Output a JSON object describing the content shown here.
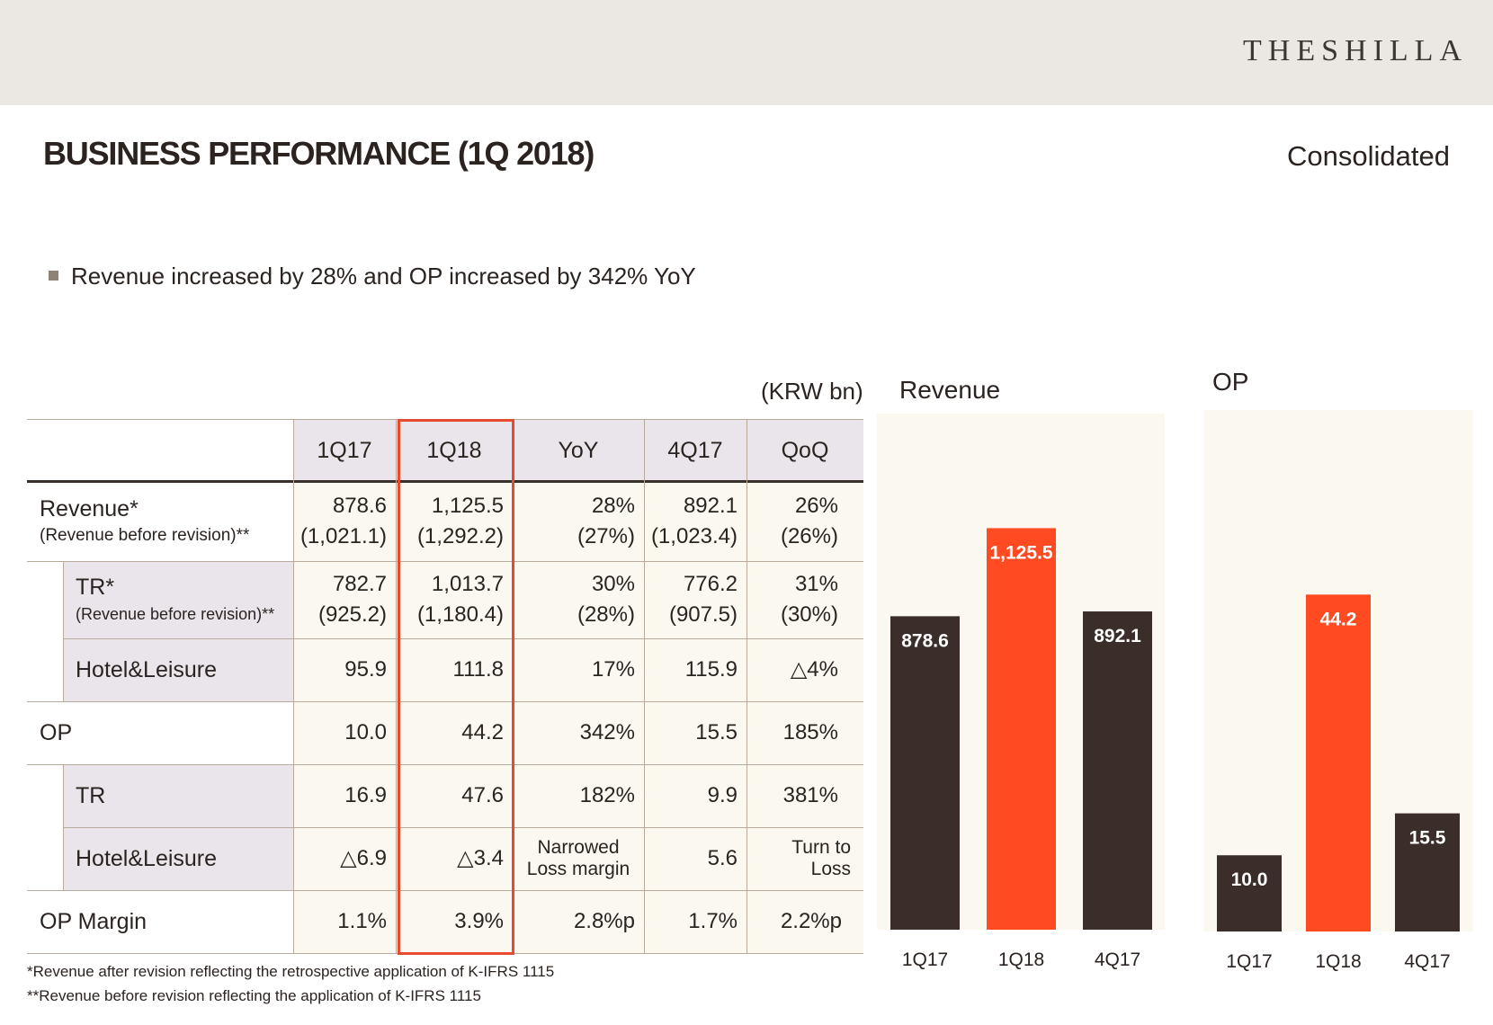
{
  "header": {
    "brand": "THESHILLA"
  },
  "page": {
    "title": "BUSINESS PERFORMANCE (1Q 2018)",
    "scope": "Consolidated",
    "headline": "Revenue increased by 28% and OP increased by 342% YoY",
    "unit": "(KRW bn)"
  },
  "table": {
    "columns": [
      "1Q17",
      "1Q18",
      "YoY",
      "4Q17",
      "QoQ"
    ],
    "rows": [
      {
        "label": "Revenue*",
        "sublabel": "(Revenue before revision)**",
        "v1": "878.6",
        "s1": "(1,021.1)",
        "v2": "1,125.5",
        "s2": "(1,292.2)",
        "v3": "28%",
        "s3": "(27%)",
        "v4": "892.1",
        "s4": "(1,023.4)",
        "v5": "26%",
        "s5": "(26%)"
      },
      {
        "label": "TR*",
        "sublabel": "(Revenue before revision)**",
        "v1": "782.7",
        "s1": "(925.2)",
        "v2": "1,013.7",
        "s2": "(1,180.4)",
        "v3": "30%",
        "s3": "(28%)",
        "v4": "776.2",
        "s4": "(907.5)",
        "v5": "31%",
        "s5": "(30%)"
      },
      {
        "label": "Hotel&Leisure",
        "v1": "95.9",
        "v2": "111.8",
        "v3": "17%",
        "v4": "115.9",
        "v5": "△4%"
      },
      {
        "label": "OP",
        "v1": "10.0",
        "v2": "44.2",
        "v3": "342%",
        "v4": "15.5",
        "v5": "185%"
      },
      {
        "label": "TR",
        "v1": "16.9",
        "v2": "47.6",
        "v3": "182%",
        "v4": "9.9",
        "v5": "381%"
      },
      {
        "label": "Hotel&Leisure",
        "v1": "△6.9",
        "v2": "△3.4",
        "v3a": "Narrowed",
        "v3b": "Loss margin",
        "v4": "5.6",
        "v5a": "Turn to",
        "v5b": "Loss"
      },
      {
        "label": "OP Margin",
        "v1": "1.1%",
        "v2": "3.9%",
        "v3": "2.8%p",
        "v4": "1.7%",
        "v5": "2.2%p"
      }
    ]
  },
  "footnotes": [
    "*Revenue after revision reflecting the retrospective application of K-IFRS 1115",
    "**Revenue before revision reflecting the application of K-IFRS 1115"
  ],
  "colors": {
    "dark_bar": "#3b2d29",
    "highlight_bar": "#ff4a22",
    "panel_bg": "#fbf9ef"
  },
  "chart_data": [
    {
      "type": "bar",
      "title": "Revenue",
      "categories": [
        "1Q17",
        "1Q18",
        "4Q17"
      ],
      "values": [
        878.6,
        1125.5,
        892.1
      ],
      "labels": [
        "878.6",
        "1,125.5",
        "892.1"
      ],
      "highlight_index": 1,
      "ylim": [
        0,
        1250
      ],
      "xlabel": "",
      "ylabel": ""
    },
    {
      "type": "bar",
      "title": "OP",
      "categories": [
        "1Q17",
        "1Q18",
        "4Q17"
      ],
      "values": [
        10.0,
        44.2,
        15.5
      ],
      "labels": [
        "10.0",
        "44.2",
        "15.5"
      ],
      "highlight_index": 1,
      "ylim": [
        0,
        67
      ],
      "xlabel": "",
      "ylabel": ""
    }
  ]
}
